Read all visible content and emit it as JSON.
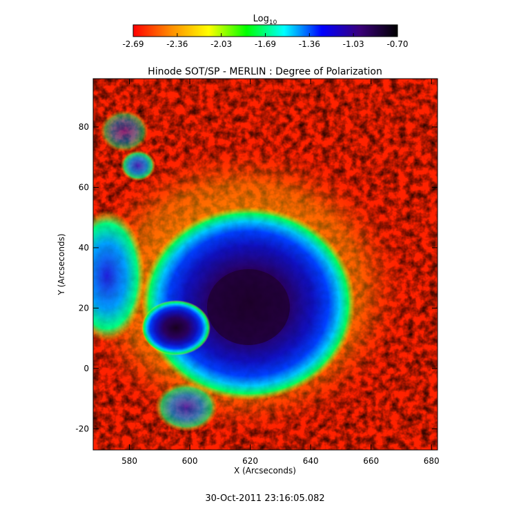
{
  "chart_data": {
    "type": "heatmap",
    "title": "Hinode SOT/SP - MERLIN : Degree of Polarization",
    "xlabel": "X (Arcseconds)",
    "ylabel": "Y (Arcseconds)",
    "xlim": [
      568,
      682
    ],
    "ylim": [
      -27,
      96
    ],
    "x_ticks": [
      580,
      600,
      620,
      640,
      660,
      680
    ],
    "y_ticks": [
      -20,
      0,
      20,
      40,
      60,
      80
    ],
    "colorbar": {
      "label_base": "Log",
      "label_sub": "10",
      "range": [
        -2.69,
        -0.7
      ],
      "tick_labels": [
        "-2.69",
        "-2.36",
        "-2.03",
        "-1.69",
        "-1.36",
        "-1.03",
        "-0.70"
      ],
      "colormap": [
        "#ff0000",
        "#ff8c00",
        "#ffff00",
        "#00ff00",
        "#00ffff",
        "#0000ff",
        "#3a007a",
        "#000000"
      ]
    },
    "features": [
      {
        "kind": "umbra",
        "center": [
          622,
          21
        ],
        "log_value": -0.75
      },
      {
        "kind": "penumbra",
        "center": [
          620,
          20
        ],
        "log_value": -1.2
      },
      {
        "kind": "plage",
        "center": [
          572,
          30
        ],
        "log_value": -1.3
      },
      {
        "kind": "quiet-sun",
        "log_value": -2.6
      }
    ],
    "footer": "30-Oct-2011 23:16:05.082"
  }
}
